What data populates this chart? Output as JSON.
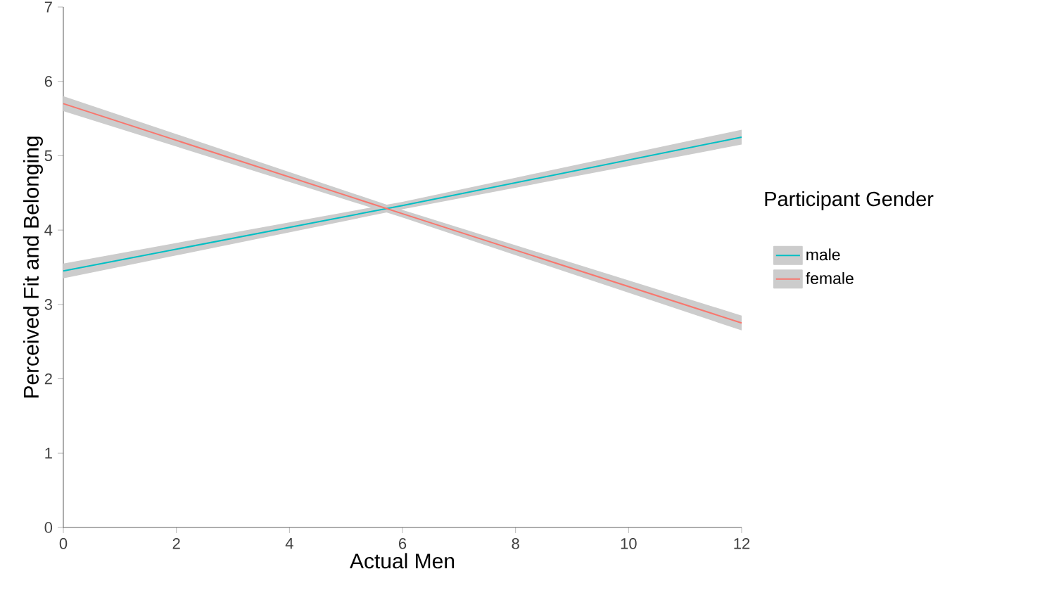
{
  "chart_data": {
    "type": "line",
    "xlabel": "Actual Men",
    "ylabel": "Perceived Fit and Belonging",
    "legend_title": "Participant Gender",
    "legend": "right",
    "grid": false,
    "marker": "none",
    "line_style": "solid",
    "xlim": [
      0,
      12
    ],
    "xticks": [
      0,
      2,
      4,
      6,
      8,
      10,
      12
    ],
    "ylim": [
      0,
      7
    ],
    "yticks": [
      0,
      1,
      2,
      3,
      4,
      5,
      6,
      7
    ],
    "x": [
      0,
      6,
      12
    ],
    "series": [
      {
        "name": "male",
        "color": "#00bfc4",
        "values": [
          3.45,
          4.33,
          5.25
        ],
        "lower": [
          3.35,
          4.28,
          5.15
        ],
        "upper": [
          3.55,
          4.38,
          5.35
        ]
      },
      {
        "name": "female",
        "color": "#f8766d",
        "values": [
          5.7,
          4.22,
          2.75
        ],
        "lower": [
          5.6,
          4.17,
          2.65
        ],
        "upper": [
          5.8,
          4.27,
          2.85
        ]
      }
    ]
  }
}
